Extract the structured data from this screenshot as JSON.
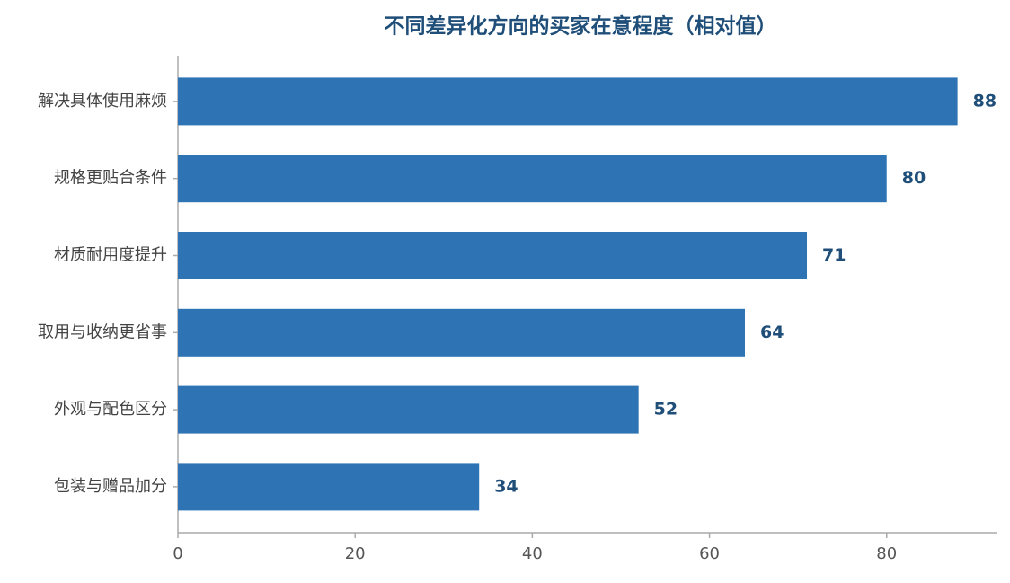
{
  "chart_data": {
    "type": "barh",
    "title": "不同差异化方向的买家在意程度（相对值）",
    "categories": [
      "解决具体使用麻烦",
      "规格更贴合条件",
      "材质耐用度提升",
      "取用与收纳更省事",
      "外观与配色区分",
      "包装与赠品加分"
    ],
    "values": [
      88,
      80,
      71,
      64,
      52,
      34
    ],
    "color": "#2e74b5",
    "xlim": [
      0,
      92.4
    ],
    "xticks": [
      0,
      20,
      40,
      60,
      80
    ],
    "grid": false
  }
}
